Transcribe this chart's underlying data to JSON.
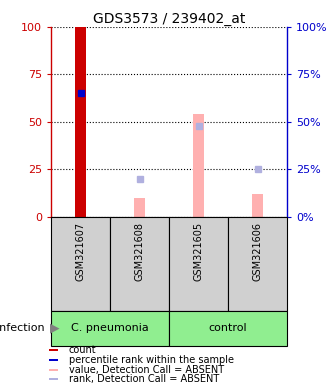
{
  "title": "GDS3573 / 239402_at",
  "samples": [
    "GSM321607",
    "GSM321608",
    "GSM321605",
    "GSM321606"
  ],
  "groups": [
    "C. pneumonia",
    "C. pneumonia",
    "control",
    "control"
  ],
  "count_values": [
    100,
    0,
    0,
    0
  ],
  "count_color": "#cc0000",
  "percentile_rank": [
    65,
    null,
    null,
    null
  ],
  "percentile_rank_color": "#0000cc",
  "value_absent": [
    null,
    10,
    54,
    12
  ],
  "value_absent_color": "#ffb0b0",
  "rank_absent": [
    null,
    20,
    48,
    25
  ],
  "rank_absent_color": "#b0b0df",
  "ylim": [
    0,
    100
  ],
  "yticks": [
    0,
    25,
    50,
    75,
    100
  ],
  "left_yaxis_color": "#cc0000",
  "right_yaxis_color": "#0000cc",
  "bar_width": 0.18,
  "group_label": "infection",
  "sample_box_color": "#d0d0d0",
  "group_box_color": "#90ee90",
  "legend_items": [
    {
      "color": "#cc0000",
      "label": "count"
    },
    {
      "color": "#0000cc",
      "label": "percentile rank within the sample"
    },
    {
      "color": "#ffb0b0",
      "label": "value, Detection Call = ABSENT"
    },
    {
      "color": "#b0b0df",
      "label": "rank, Detection Call = ABSENT"
    }
  ]
}
